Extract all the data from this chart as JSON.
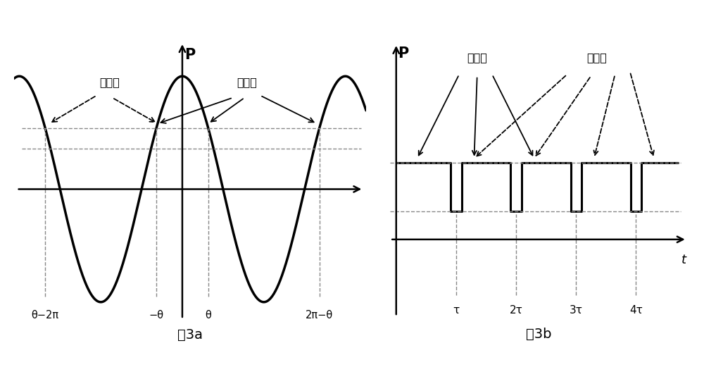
{
  "fig_width": 10.0,
  "fig_height": 5.21,
  "bg_color": "#ffffff",
  "panel_a": {
    "theta": 1.0,
    "cosine_lw": 2.5,
    "hline_color": "#888888",
    "hline_lw": 1.0,
    "vline_color": "#888888",
    "vline_lw": 1.0,
    "P_label": "P",
    "xlabel_theta_minus_2pi": "θ−2π",
    "xlabel_neg_theta": "−θ",
    "xlabel_theta": "θ",
    "xlabel_2pi_minus_theta": "2π−θ",
    "label_ccw": "逆时针",
    "label_cw": "顺时针",
    "caption": "图3a"
  },
  "panel_b": {
    "P_label": "P",
    "t_label": "t",
    "hline_color": "#888888",
    "hline_lw": 1.0,
    "vline_color": "#888888",
    "vline_lw": 1.0,
    "label_cw": "顺时针",
    "label_ccw": "逆时针",
    "tick_labels": [
      "τ",
      "2τ",
      "3τ",
      "4τ"
    ],
    "caption": "图3b",
    "signal_lw": 2.2
  }
}
